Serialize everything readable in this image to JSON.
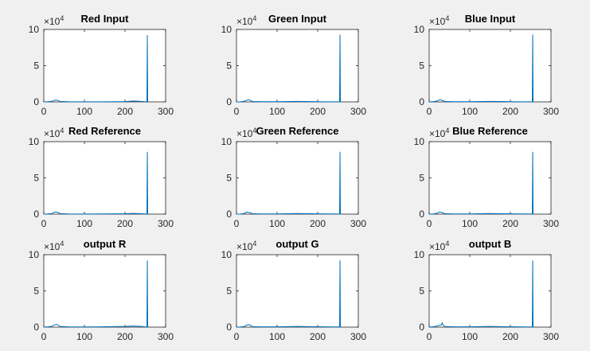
{
  "figure": {
    "background": "#f0f0f0",
    "line_color": "#0072bd"
  },
  "axes_common": {
    "xlim": [
      0,
      300
    ],
    "ylim": [
      0,
      100000
    ],
    "xticks": [
      "0",
      "100",
      "200",
      "300"
    ],
    "yticks": [
      "0",
      "5",
      "10"
    ],
    "exponent_base": "×10",
    "exponent_power": "4"
  },
  "chart_data": [
    {
      "type": "line",
      "title": "Red Input",
      "xlim": [
        0,
        300
      ],
      "ylim": [
        0,
        100000
      ],
      "grid": false,
      "series": [
        {
          "x": [
            0,
            10,
            20,
            25,
            30,
            35,
            40,
            60,
            100,
            150,
            200,
            220,
            240,
            250,
            254,
            255,
            256,
            257
          ],
          "y": [
            0,
            300,
            800,
            2000,
            2500,
            2000,
            700,
            300,
            150,
            200,
            400,
            1300,
            700,
            300,
            400,
            92000,
            0,
            0
          ]
        }
      ]
    },
    {
      "type": "line",
      "title": "Green Input",
      "xlim": [
        0,
        300
      ],
      "ylim": [
        0,
        100000
      ],
      "grid": false,
      "series": [
        {
          "x": [
            0,
            10,
            20,
            25,
            30,
            35,
            40,
            60,
            100,
            150,
            200,
            220,
            240,
            250,
            254,
            255,
            256,
            257
          ],
          "y": [
            0,
            200,
            900,
            2400,
            2800,
            2000,
            600,
            300,
            250,
            700,
            300,
            200,
            200,
            200,
            300,
            93000,
            0,
            0
          ]
        }
      ]
    },
    {
      "type": "line",
      "title": "Blue Input",
      "xlim": [
        0,
        300
      ],
      "ylim": [
        0,
        100000
      ],
      "grid": false,
      "series": [
        {
          "x": [
            0,
            10,
            20,
            25,
            30,
            35,
            40,
            60,
            100,
            150,
            200,
            220,
            240,
            250,
            254,
            255,
            256,
            257
          ],
          "y": [
            0,
            400,
            1200,
            2800,
            2600,
            1500,
            500,
            300,
            250,
            700,
            300,
            200,
            200,
            200,
            300,
            93000,
            0,
            0
          ]
        }
      ]
    },
    {
      "type": "line",
      "title": "Red Reference",
      "xlim": [
        0,
        300
      ],
      "ylim": [
        0,
        100000
      ],
      "grid": false,
      "series": [
        {
          "x": [
            0,
            10,
            20,
            25,
            30,
            35,
            40,
            60,
            100,
            150,
            200,
            220,
            240,
            250,
            254,
            255,
            256,
            257
          ],
          "y": [
            0,
            300,
            800,
            2500,
            3000,
            2200,
            700,
            300,
            200,
            300,
            600,
            1000,
            600,
            300,
            400,
            86000,
            0,
            0
          ]
        }
      ]
    },
    {
      "type": "line",
      "title": "Green Reference",
      "xlim": [
        0,
        300
      ],
      "ylim": [
        0,
        100000
      ],
      "grid": false,
      "series": [
        {
          "x": [
            0,
            10,
            20,
            25,
            30,
            35,
            40,
            60,
            100,
            150,
            200,
            220,
            240,
            250,
            254,
            255,
            256,
            257
          ],
          "y": [
            0,
            200,
            1000,
            2800,
            2400,
            1500,
            500,
            300,
            300,
            800,
            400,
            300,
            300,
            200,
            300,
            86000,
            0,
            0
          ]
        }
      ]
    },
    {
      "type": "line",
      "title": "Blue Reference",
      "xlim": [
        0,
        300
      ],
      "ylim": [
        0,
        100000
      ],
      "grid": false,
      "series": [
        {
          "x": [
            0,
            10,
            20,
            25,
            30,
            35,
            40,
            60,
            100,
            150,
            200,
            220,
            240,
            250,
            254,
            255,
            256,
            257
          ],
          "y": [
            0,
            300,
            1200,
            3000,
            2500,
            1400,
            500,
            300,
            300,
            800,
            400,
            300,
            300,
            200,
            300,
            86000,
            0,
            0
          ]
        }
      ]
    },
    {
      "type": "line",
      "title": "output R",
      "xlim": [
        0,
        300
      ],
      "ylim": [
        0,
        100000
      ],
      "grid": false,
      "series": [
        {
          "x": [
            0,
            10,
            20,
            25,
            30,
            35,
            40,
            60,
            100,
            150,
            200,
            220,
            240,
            250,
            254,
            255,
            256,
            257
          ],
          "y": [
            0,
            400,
            1200,
            2800,
            3800,
            3000,
            900,
            400,
            300,
            500,
            900,
            1500,
            900,
            400,
            500,
            92000,
            0,
            0
          ]
        }
      ]
    },
    {
      "type": "line",
      "title": "output G",
      "xlim": [
        0,
        300
      ],
      "ylim": [
        0,
        100000
      ],
      "grid": false,
      "series": [
        {
          "x": [
            0,
            10,
            20,
            25,
            30,
            35,
            40,
            60,
            100,
            150,
            200,
            220,
            240,
            250,
            254,
            255,
            256,
            257
          ],
          "y": [
            0,
            300,
            1000,
            2600,
            3500,
            2200,
            700,
            400,
            400,
            1000,
            500,
            400,
            300,
            300,
            400,
            92000,
            0,
            0
          ]
        }
      ]
    },
    {
      "type": "line",
      "title": "output B",
      "xlim": [
        0,
        300
      ],
      "ylim": [
        0,
        100000
      ],
      "grid": false,
      "series": [
        {
          "x": [
            0,
            10,
            20,
            25,
            30,
            32,
            34,
            36,
            40,
            60,
            100,
            150,
            200,
            220,
            240,
            250,
            254,
            255,
            256,
            257
          ],
          "y": [
            0,
            500,
            1500,
            2500,
            3000,
            6000,
            3000,
            1800,
            800,
            500,
            400,
            900,
            500,
            400,
            300,
            300,
            400,
            92000,
            0,
            0
          ]
        }
      ]
    }
  ]
}
